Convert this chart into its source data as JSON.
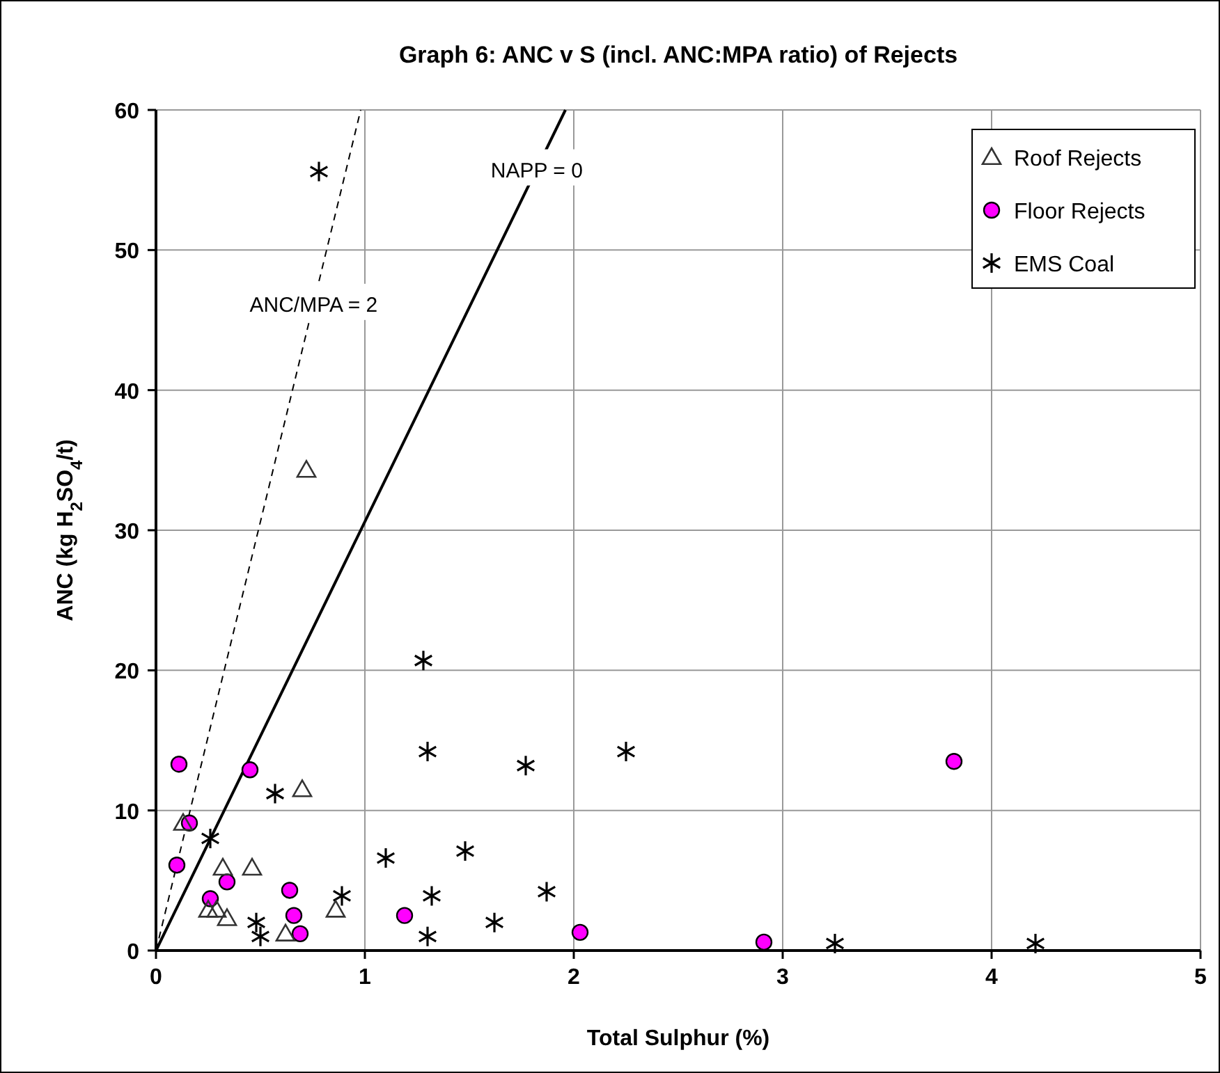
{
  "chart_data": {
    "type": "scatter",
    "title": "Graph 6:  ANC v S (incl. ANC:MPA ratio) of Rejects",
    "xlabel": "Total Sulphur (%)",
    "ylabel": "ANC (kg H$_{2}$SO$_{4}$/t)",
    "xlim": [
      0,
      5
    ],
    "ylim": [
      0,
      60
    ],
    "xticks": [
      0,
      1,
      2,
      3,
      4,
      5
    ],
    "yticks": [
      0,
      10,
      20,
      30,
      40,
      50,
      60
    ],
    "grid": true,
    "legend": "top right",
    "series": [
      {
        "name": "Roof Rejects",
        "color": "#333333",
        "marker": "triangle",
        "x": [
          0.72,
          0.7,
          0.13,
          0.32,
          0.46,
          0.25,
          0.29,
          0.34,
          0.62,
          0.86
        ],
        "values": [
          34.3,
          11.5,
          9.1,
          5.9,
          5.9,
          2.9,
          2.9,
          2.3,
          1.2,
          2.9
        ]
      },
      {
        "name": "Floor Rejects",
        "color": "#ff00ff",
        "marker": "circle",
        "x": [
          0.11,
          0.45,
          0.16,
          0.1,
          0.34,
          0.26,
          0.64,
          0.66,
          0.69,
          1.19,
          2.03,
          2.91,
          3.82
        ],
        "values": [
          13.3,
          12.9,
          9.1,
          6.1,
          4.9,
          3.7,
          4.3,
          2.5,
          1.2,
          2.5,
          1.3,
          0.6,
          13.5
        ]
      },
      {
        "name": "EMS Coal",
        "color": "#000000",
        "marker": "cross",
        "x": [
          0.78,
          1.28,
          0.57,
          0.26,
          0.48,
          0.5,
          0.89,
          1.3,
          1.77,
          1.1,
          1.48,
          1.32,
          1.3,
          1.62,
          1.87,
          2.25,
          3.25,
          4.21
        ],
        "values": [
          55.6,
          20.7,
          11.2,
          8.0,
          2.0,
          1.0,
          3.9,
          14.2,
          13.2,
          6.6,
          7.1,
          3.9,
          1.0,
          2.0,
          4.2,
          14.2,
          0.5,
          0.5
        ]
      },
      {
        "name": "NAPP = 0",
        "type": "line",
        "color": "#000000",
        "line_style": "solid",
        "x": [
          0,
          1.96
        ],
        "values": [
          0,
          60
        ]
      },
      {
        "name": "ANC/MPA = 2",
        "type": "line",
        "color": "#000000",
        "line_style": "dashed",
        "x": [
          0,
          0.98
        ],
        "values": [
          0,
          60
        ]
      }
    ]
  }
}
